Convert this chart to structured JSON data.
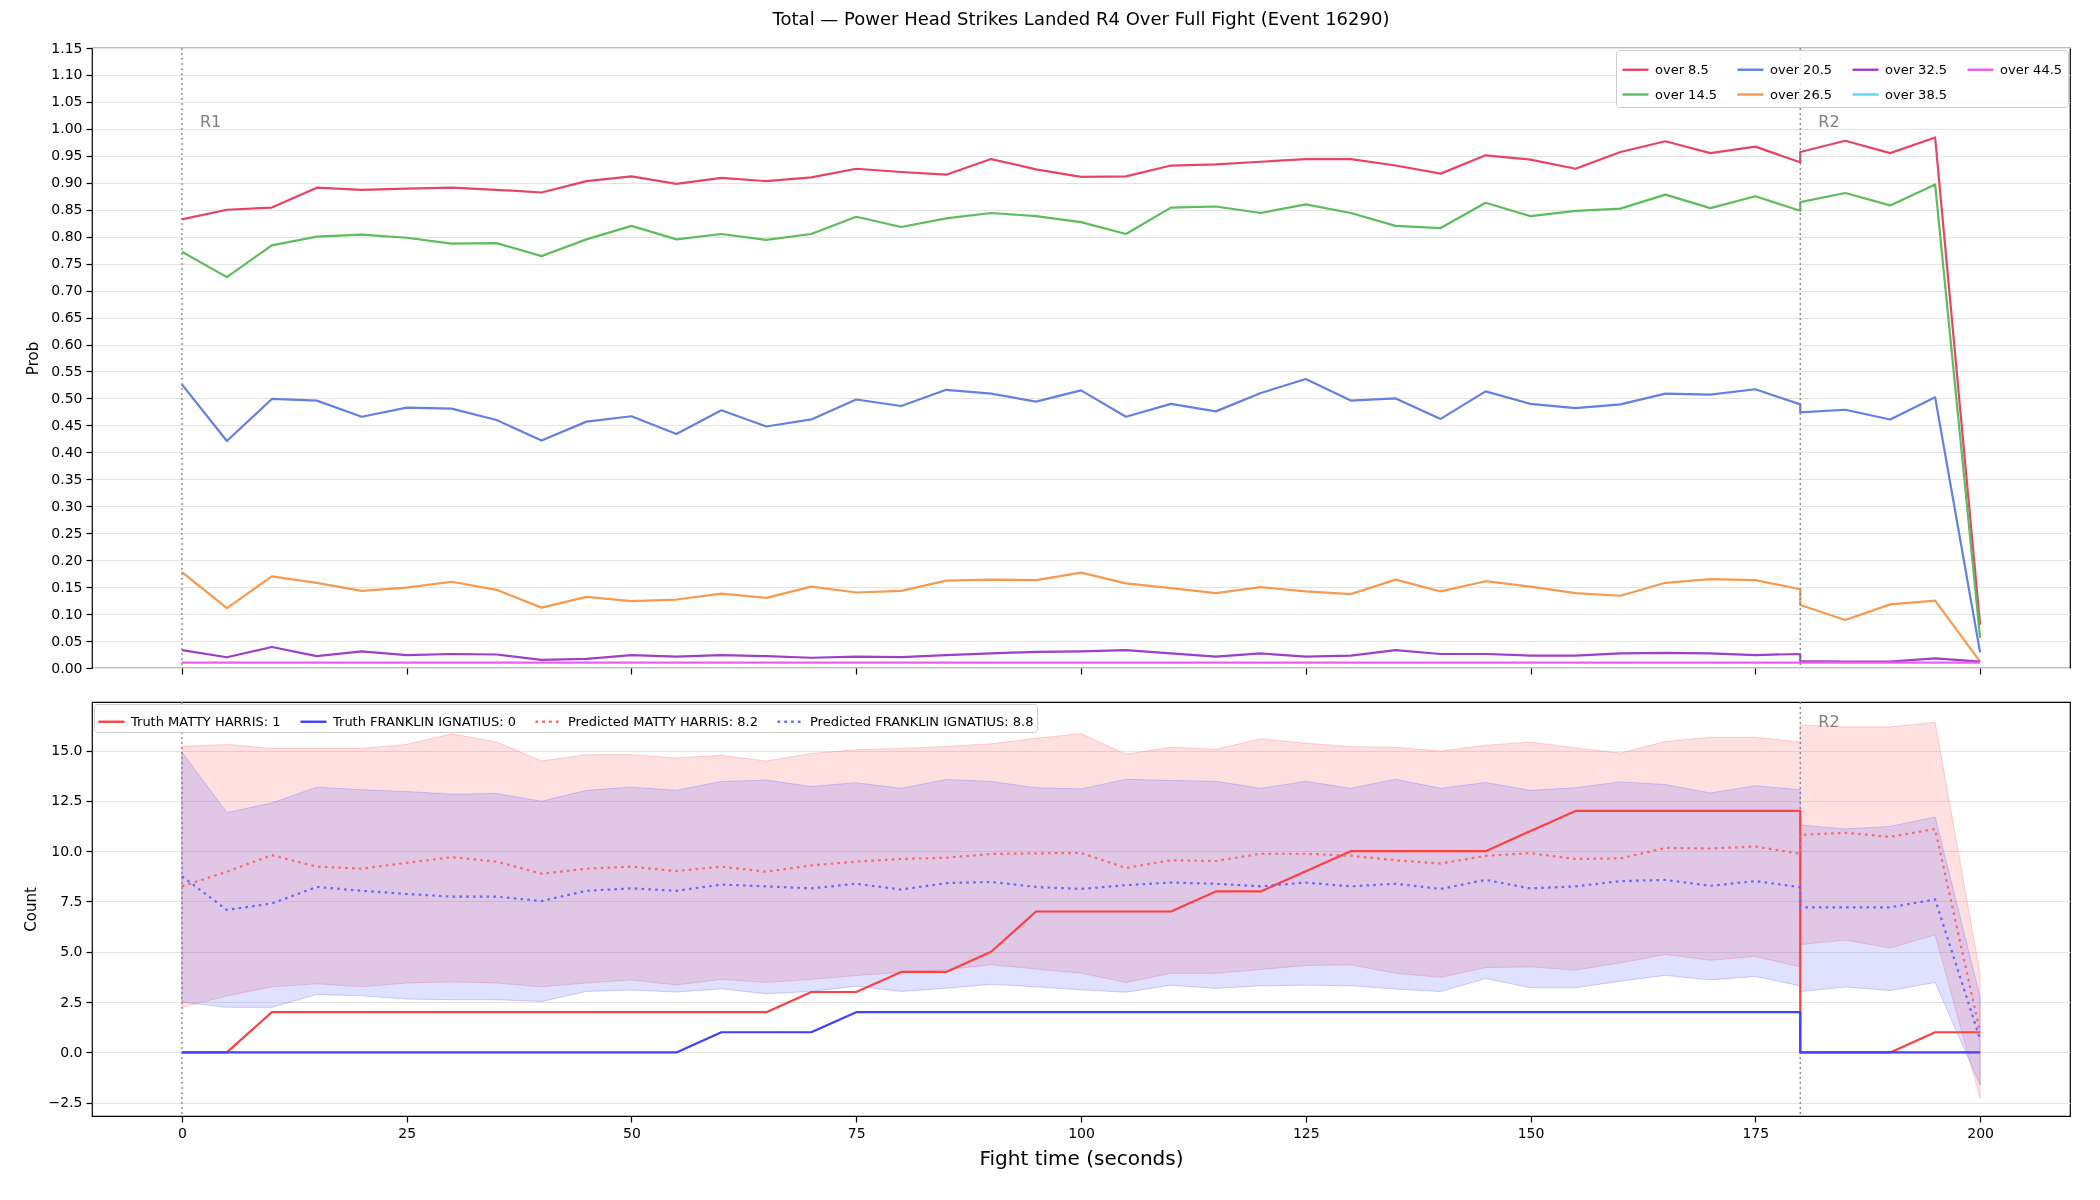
{
  "chart_data": [
    {
      "type": "line",
      "title": "Total — Power Head Strikes Landed R4 Over Full Fight (Event 16290)",
      "ylabel": "Prob",
      "x": [
        0,
        5,
        10,
        15,
        20,
        25,
        30,
        35,
        40,
        45,
        50,
        55,
        60,
        65,
        70,
        75,
        80,
        85,
        90,
        95,
        100,
        105,
        110,
        115,
        120,
        125,
        130,
        135,
        140,
        145,
        150,
        155,
        160,
        165,
        170,
        175,
        180,
        180,
        185,
        190,
        195,
        200
      ],
      "xlim": [
        -10,
        210
      ],
      "xticks": [
        0,
        25,
        50,
        75,
        100,
        125,
        150,
        175,
        200
      ],
      "ylim": [
        0,
        1.15
      ],
      "yticks": [
        {
          "value": 0,
          "label": "0.00"
        },
        0.05,
        {
          "value": 0.1,
          "label": "0.10"
        },
        0.15,
        {
          "value": 0.2,
          "label": "0.20"
        },
        0.25,
        {
          "value": 0.3,
          "label": "0.30"
        },
        0.35,
        {
          "value": 0.4,
          "label": "0.40"
        },
        0.45,
        {
          "value": 0.5,
          "label": "0.50"
        },
        0.55,
        {
          "value": 0.6,
          "label": "0.60"
        },
        0.65,
        {
          "value": 0.7,
          "label": "0.70"
        },
        0.75,
        {
          "value": 0.8,
          "label": "0.80"
        },
        0.85,
        {
          "value": 0.9,
          "label": "0.90"
        },
        0.95,
        {
          "value": 1,
          "label": "1.00"
        },
        1.05,
        {
          "value": 1.1,
          "label": "1.10"
        },
        1.15
      ],
      "tick_labels": "y",
      "grid": "y",
      "legend": "top right",
      "ref_lines": [
        {
          "axis": "x",
          "value": 0,
          "label": "R1",
          "color": "#808080",
          "line_style": "dotted"
        },
        {
          "axis": "x",
          "value": 180,
          "label": "R2",
          "color": "#808080",
          "line_style": "dotted"
        }
      ],
      "series": [
        {
          "name": "over 8.5",
          "color": "#e94364",
          "values": [
            0.832,
            0.85,
            0.854,
            0.891,
            0.887,
            0.889,
            0.891,
            0.887,
            0.882,
            0.903,
            0.912,
            0.898,
            0.909,
            0.903,
            0.91,
            0.926,
            0.92,
            0.915,
            0.944,
            0.925,
            0.911,
            0.912,
            0.932,
            0.934,
            0.939,
            0.944,
            0.944,
            0.932,
            0.917,
            0.951,
            0.943,
            0.926,
            0.957,
            0.977,
            0.955,
            0.967,
            0.938,
            0.957,
            0.978,
            0.955,
            0.984,
            0.08
          ]
        },
        {
          "name": "over 14.5",
          "color": "#5cbd5c",
          "values": [
            0.772,
            0.725,
            0.784,
            0.8,
            0.804,
            0.798,
            0.787,
            0.788,
            0.764,
            0.795,
            0.82,
            0.795,
            0.805,
            0.794,
            0.805,
            0.837,
            0.818,
            0.834,
            0.844,
            0.838,
            0.827,
            0.805,
            0.854,
            0.856,
            0.844,
            0.86,
            0.844,
            0.82,
            0.816,
            0.863,
            0.838,
            0.848,
            0.852,
            0.878,
            0.853,
            0.875,
            0.848,
            0.864,
            0.881,
            0.858,
            0.897,
            0.056
          ]
        },
        {
          "name": "over 20.5",
          "color": "#6480e0",
          "values": [
            0.526,
            0.421,
            0.499,
            0.496,
            0.466,
            0.483,
            0.481,
            0.46,
            0.422,
            0.457,
            0.467,
            0.434,
            0.478,
            0.448,
            0.461,
            0.498,
            0.486,
            0.516,
            0.509,
            0.494,
            0.515,
            0.466,
            0.49,
            0.476,
            0.51,
            0.536,
            0.496,
            0.5,
            0.462,
            0.513,
            0.49,
            0.482,
            0.489,
            0.509,
            0.507,
            0.517,
            0.489,
            0.474,
            0.479,
            0.461,
            0.502,
            0.029
          ]
        },
        {
          "name": "over 26.5",
          "color": "#f7994f",
          "values": [
            0.178,
            0.111,
            0.17,
            0.158,
            0.143,
            0.149,
            0.16,
            0.145,
            0.112,
            0.132,
            0.124,
            0.127,
            0.138,
            0.13,
            0.151,
            0.14,
            0.143,
            0.162,
            0.164,
            0.163,
            0.177,
            0.157,
            0.148,
            0.139,
            0.15,
            0.142,
            0.137,
            0.164,
            0.142,
            0.161,
            0.151,
            0.139,
            0.134,
            0.158,
            0.165,
            0.163,
            0.146,
            0.117,
            0.089,
            0.118,
            0.125,
            0.012
          ]
        },
        {
          "name": "over 32.5",
          "color": "#9d3fc9",
          "values": [
            0.033,
            0.02,
            0.039,
            0.022,
            0.031,
            0.024,
            0.026,
            0.025,
            0.015,
            0.017,
            0.024,
            0.021,
            0.024,
            0.022,
            0.019,
            0.021,
            0.02,
            0.024,
            0.027,
            0.03,
            0.031,
            0.033,
            0.027,
            0.021,
            0.027,
            0.021,
            0.023,
            0.033,
            0.026,
            0.026,
            0.023,
            0.023,
            0.027,
            0.028,
            0.027,
            0.024,
            0.026,
            0.013,
            0.012,
            0.012,
            0.018,
            0.012
          ]
        },
        {
          "name": "over 38.5",
          "color": "#5bd8f5",
          "values": [
            null,
            null,
            null,
            null,
            null,
            null,
            null,
            null,
            null,
            null,
            null,
            null,
            null,
            null,
            null,
            null,
            null,
            null,
            null,
            null,
            null,
            null,
            null,
            null,
            null,
            null,
            null,
            null,
            null,
            null,
            null,
            null,
            null,
            null,
            null,
            null,
            null,
            null,
            null,
            null,
            null,
            null
          ]
        },
        {
          "name": "over 44.5",
          "color": "#f05cf0",
          "values": [
            0.01,
            0.01,
            0.01,
            0.01,
            0.01,
            0.01,
            0.01,
            0.01,
            0.01,
            0.01,
            0.01,
            0.01,
            0.01,
            0.01,
            0.01,
            0.01,
            0.01,
            0.01,
            0.01,
            0.01,
            0.01,
            0.01,
            0.01,
            0.01,
            0.01,
            0.01,
            0.01,
            0.01,
            0.01,
            0.01,
            0.01,
            0.01,
            0.01,
            0.01,
            0.01,
            0.01,
            0.01,
            0.01,
            0.01,
            0.01,
            0.01,
            0.01
          ]
        }
      ]
    },
    {
      "type": "line",
      "xlabel": "Fight time (seconds)",
      "ylabel": "Count",
      "x": [
        0,
        5,
        10,
        15,
        20,
        25,
        30,
        35,
        40,
        45,
        50,
        55,
        60,
        65,
        70,
        75,
        80,
        85,
        90,
        95,
        100,
        105,
        110,
        115,
        120,
        125,
        130,
        135,
        140,
        145,
        150,
        155,
        160,
        165,
        170,
        175,
        180,
        180,
        185,
        190,
        195,
        200
      ],
      "xlim": [
        -10,
        210
      ],
      "xticks": [
        0,
        25,
        50,
        75,
        100,
        125,
        150,
        175,
        200
      ],
      "ylim": [
        -3.16,
        17.41
      ],
      "yticks": [
        {
          "value": -2.5,
          "label": "−2.5"
        },
        {
          "value": 0,
          "label": "0.0"
        },
        2.5,
        {
          "value": 5,
          "label": "5.0"
        },
        7.5,
        {
          "value": 10,
          "label": "10.0"
        },
        12.5,
        {
          "value": 15,
          "label": "15.0"
        }
      ],
      "grid": "y",
      "legend": "top left",
      "ref_lines": [
        {
          "axis": "x",
          "value": 0,
          "color": "#808080",
          "line_style": "dotted"
        },
        {
          "axis": "x",
          "value": 180,
          "label": "R2",
          "color": "#808080",
          "line_style": "dotted"
        }
      ],
      "series": [
        {
          "name": "Truth MATTY HARRIS: 1",
          "color": "#ff4040",
          "values": [
            0,
            0,
            2,
            2,
            2,
            2,
            2,
            2,
            2,
            2,
            2,
            2,
            2,
            2,
            3,
            3,
            4,
            4,
            5,
            7,
            7,
            7,
            7,
            8,
            8,
            9,
            10,
            10,
            10,
            10,
            11,
            12,
            12,
            12,
            12,
            12,
            12,
            0,
            0,
            0,
            1,
            1
          ]
        },
        {
          "name": "Truth FRANKLIN IGNATIUS: 0",
          "color": "#4040ff",
          "values": [
            0,
            0,
            0,
            0,
            0,
            0,
            0,
            0,
            0,
            0,
            0,
            0,
            1,
            1,
            1,
            2,
            2,
            2,
            2,
            2,
            2,
            2,
            2,
            2,
            2,
            2,
            2,
            2,
            2,
            2,
            2,
            2,
            2,
            2,
            2,
            2,
            2,
            0,
            0,
            0,
            0,
            0
          ]
        },
        {
          "name": "Predicted MATTY HARRIS: 8.2",
          "color": "#ff6666",
          "line_style": "dotted",
          "values": [
            8.25,
            8.98,
            9.8,
            9.23,
            9.13,
            9.42,
            9.7,
            9.48,
            8.88,
            9.13,
            9.23,
            9.01,
            9.23,
            8.98,
            9.29,
            9.48,
            9.61,
            9.67,
            9.86,
            9.89,
            9.91,
            9.16,
            9.55,
            9.51,
            9.87,
            9.87,
            9.77,
            9.55,
            9.38,
            9.77,
            9.9,
            9.61,
            9.64,
            10.16,
            10.13,
            10.23,
            9.87,
            10.81,
            10.91,
            10.71,
            11.1,
            1.0
          ],
          "lower": [
            2.24,
            2.81,
            3.26,
            3.41,
            3.26,
            3.45,
            3.51,
            3.45,
            3.26,
            3.45,
            3.6,
            3.35,
            3.63,
            3.48,
            3.63,
            3.82,
            3.98,
            4.11,
            4.36,
            4.14,
            3.94,
            3.47,
            3.93,
            3.93,
            4.12,
            4.32,
            4.35,
            3.93,
            3.73,
            4.22,
            4.25,
            4.09,
            4.45,
            4.87,
            4.58,
            4.77,
            4.25,
            5.36,
            5.58,
            5.19,
            5.84,
            -2.27
          ],
          "upper": [
            15.2,
            15.3,
            15.1,
            15.1,
            15.1,
            15.3,
            15.83,
            15.42,
            14.48,
            14.79,
            14.79,
            14.63,
            14.76,
            14.48,
            14.85,
            15.04,
            15.1,
            15.2,
            15.33,
            15.61,
            15.84,
            14.81,
            15.16,
            15.06,
            15.58,
            15.36,
            15.19,
            15.16,
            14.97,
            15.26,
            15.42,
            15.13,
            14.87,
            15.45,
            15.65,
            15.65,
            15.42,
            16.27,
            16.17,
            16.17,
            16.4,
            3.89
          ]
        },
        {
          "name": "Predicted FRANKLIN IGNATIUS: 8.8",
          "color": "#6666ff",
          "line_style": "dotted",
          "values": [
            8.75,
            7.08,
            7.4,
            8.22,
            8.03,
            7.87,
            7.74,
            7.74,
            7.52,
            8.03,
            8.15,
            8.03,
            8.34,
            8.25,
            8.15,
            8.38,
            8.09,
            8.41,
            8.47,
            8.22,
            8.12,
            8.31,
            8.44,
            8.38,
            8.25,
            8.44,
            8.25,
            8.38,
            8.12,
            8.57,
            8.15,
            8.25,
            8.51,
            8.57,
            8.28,
            8.51,
            8.21,
            7.21,
            7.21,
            7.21,
            7.6,
            0.65
          ],
          "lower": [
            2.5,
            2.24,
            2.24,
            2.88,
            2.81,
            2.65,
            2.62,
            2.62,
            2.53,
            3.03,
            3.1,
            3.0,
            3.16,
            2.91,
            3.03,
            3.29,
            3.03,
            3.19,
            3.38,
            3.26,
            3.11,
            2.99,
            3.34,
            3.18,
            3.31,
            3.34,
            3.31,
            3.15,
            3.02,
            3.67,
            3.21,
            3.21,
            3.54,
            3.83,
            3.6,
            3.77,
            3.31,
            3.02,
            3.25,
            3.08,
            3.47,
            -1.62
          ],
          "upper": [
            14.92,
            11.92,
            12.39,
            13.18,
            13.05,
            12.96,
            12.83,
            12.86,
            12.48,
            13.02,
            13.18,
            13.02,
            13.46,
            13.53,
            13.21,
            13.4,
            13.12,
            13.56,
            13.46,
            13.15,
            13.09,
            13.57,
            13.51,
            13.47,
            13.12,
            13.47,
            13.12,
            13.57,
            13.12,
            13.41,
            13.02,
            13.15,
            13.44,
            13.31,
            12.89,
            13.25,
            13.05,
            11.3,
            11.1,
            11.23,
            11.69,
            2.76
          ]
        }
      ]
    }
  ]
}
